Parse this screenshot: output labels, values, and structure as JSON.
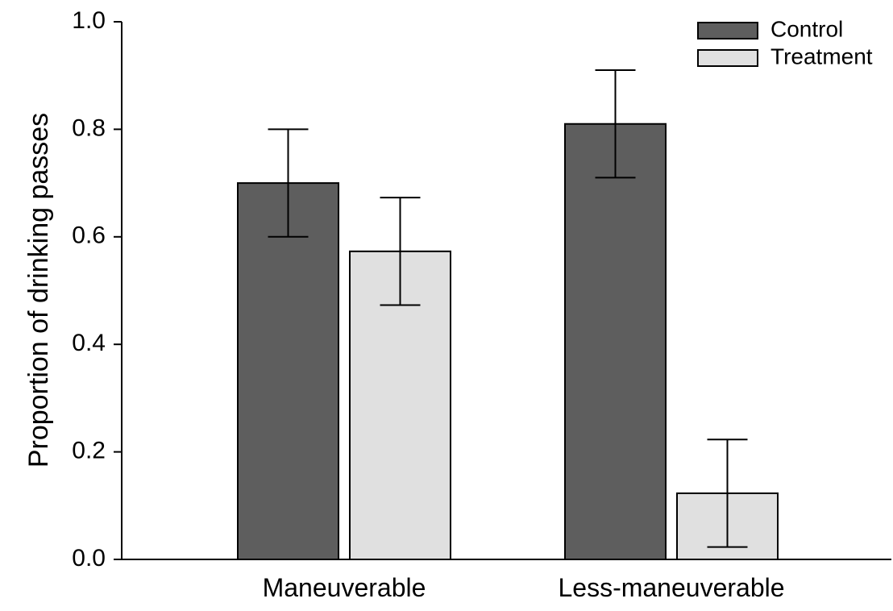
{
  "chart_data": {
    "type": "bar",
    "title": "",
    "xlabel": "",
    "ylabel": "Proportion of drinking passes",
    "categories": [
      "Maneuverable",
      "Less-maneuverable"
    ],
    "series": [
      {
        "name": "Control",
        "values": [
          0.7,
          0.81
        ],
        "error": [
          0.1,
          0.1
        ],
        "color": "#5e5e5e"
      },
      {
        "name": "Treatment",
        "values": [
          0.573,
          0.123
        ],
        "error": [
          0.1,
          0.1
        ],
        "color": "#e0e0e0"
      }
    ],
    "ylim": [
      0.0,
      1.0
    ],
    "yticks": [
      "0.0",
      "0.2",
      "0.4",
      "0.6",
      "0.8",
      "1.0"
    ],
    "ytick_values": [
      0.0,
      0.2,
      0.4,
      0.6,
      0.8,
      1.0
    ],
    "grid": false,
    "legend": "top-right",
    "error_bars": true,
    "axis_color": "#000000"
  }
}
